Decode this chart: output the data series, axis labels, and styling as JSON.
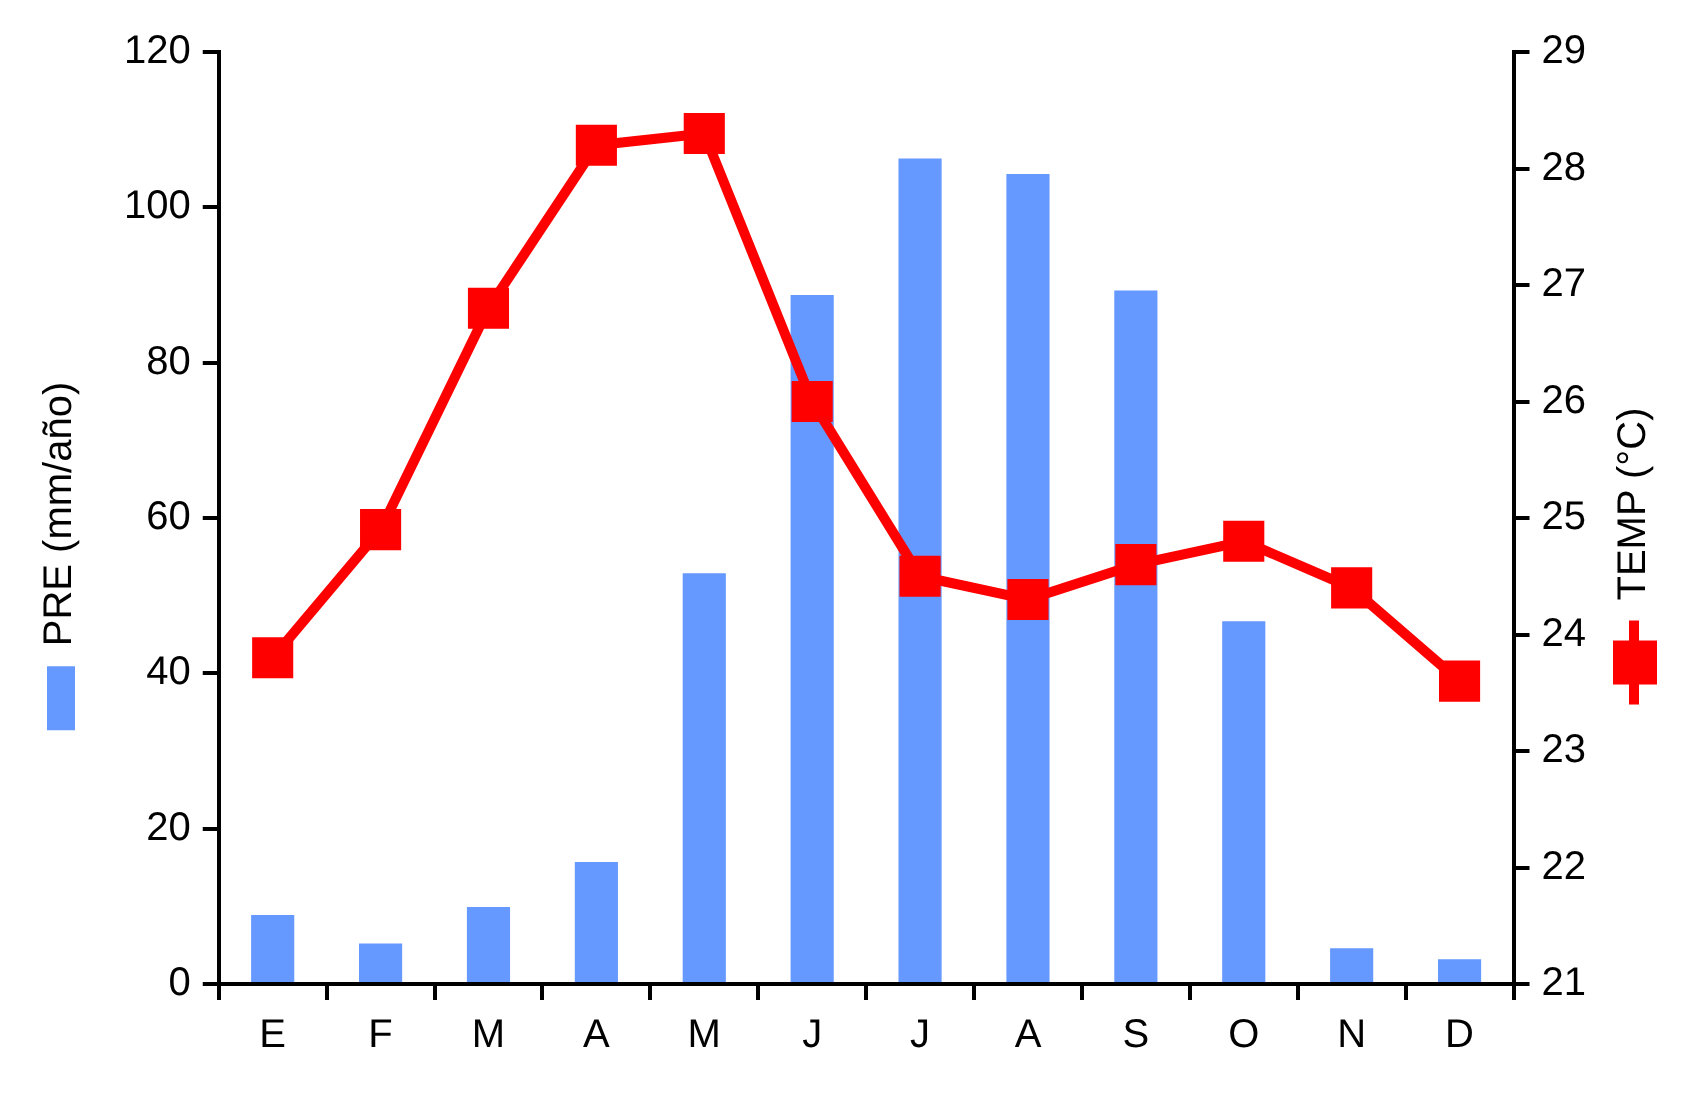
{
  "chart_data": {
    "type": "bar",
    "categories": [
      "E",
      "F",
      "M",
      "A",
      "M",
      "J",
      "J",
      "A",
      "S",
      "O",
      "N",
      "D"
    ],
    "ylabel": "PRE (mm/año)",
    "y2label": "TEMP (°C)",
    "series": [
      {
        "axis": "y",
        "color": "#6699ff",
        "values": [
          8.9,
          5.2,
          9.9,
          15.7,
          52.9,
          88.7,
          106.3,
          104.3,
          89.3,
          46.7,
          4.6,
          3.2
        ]
      },
      {
        "type": "line",
        "axis": "y2",
        "color": "#ff0000",
        "marker": "square",
        "values": [
          23.8,
          24.9,
          26.8,
          28.2,
          28.3,
          26.0,
          24.5,
          24.3,
          24.6,
          24.8,
          24.4,
          23.6
        ]
      }
    ],
    "ylim": [
      0,
      120
    ],
    "yticks": [
      0,
      20,
      40,
      60,
      80,
      100,
      120
    ],
    "y2lim": [
      21,
      29
    ],
    "y2ticks": [
      21,
      22,
      23,
      24,
      25,
      26,
      27,
      28,
      29
    ],
    "grid": false
  }
}
